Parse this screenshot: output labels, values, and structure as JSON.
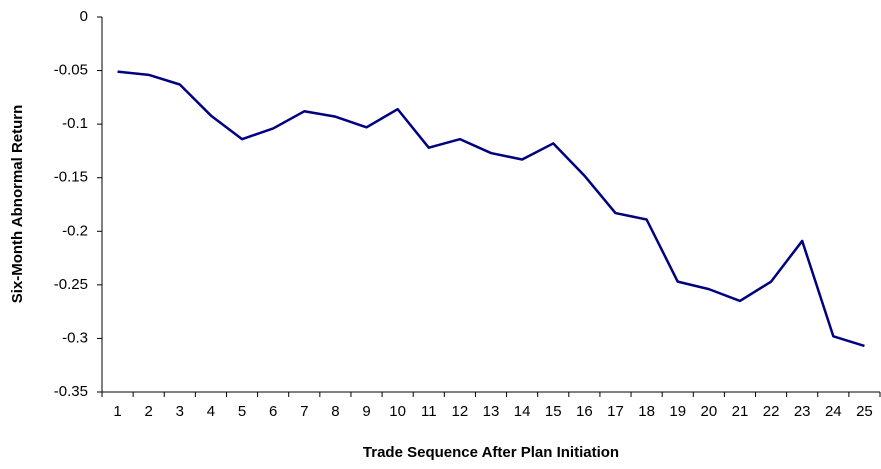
{
  "chart_data": {
    "type": "line",
    "xlabel": "Trade Sequence After Plan Initiation",
    "ylabel": "Six-Month Abnormal Return",
    "categories": [
      1,
      2,
      3,
      4,
      5,
      6,
      7,
      8,
      9,
      10,
      11,
      12,
      13,
      14,
      15,
      16,
      17,
      18,
      19,
      20,
      21,
      22,
      23,
      24,
      25
    ],
    "series": [
      {
        "color": "#000080",
        "values": [
          -0.051,
          -0.054,
          -0.063,
          -0.092,
          -0.114,
          -0.104,
          -0.088,
          -0.093,
          -0.103,
          -0.086,
          -0.122,
          -0.114,
          -0.127,
          -0.133,
          -0.118,
          -0.148,
          -0.183,
          -0.189,
          -0.247,
          -0.254,
          -0.265,
          -0.247,
          -0.209,
          -0.298,
          -0.307
        ]
      }
    ],
    "ylim": [
      -0.35,
      0
    ],
    "yticks": [
      0,
      -0.05,
      -0.1,
      -0.15,
      -0.2,
      -0.25,
      -0.3,
      -0.35
    ],
    "grid": false
  }
}
